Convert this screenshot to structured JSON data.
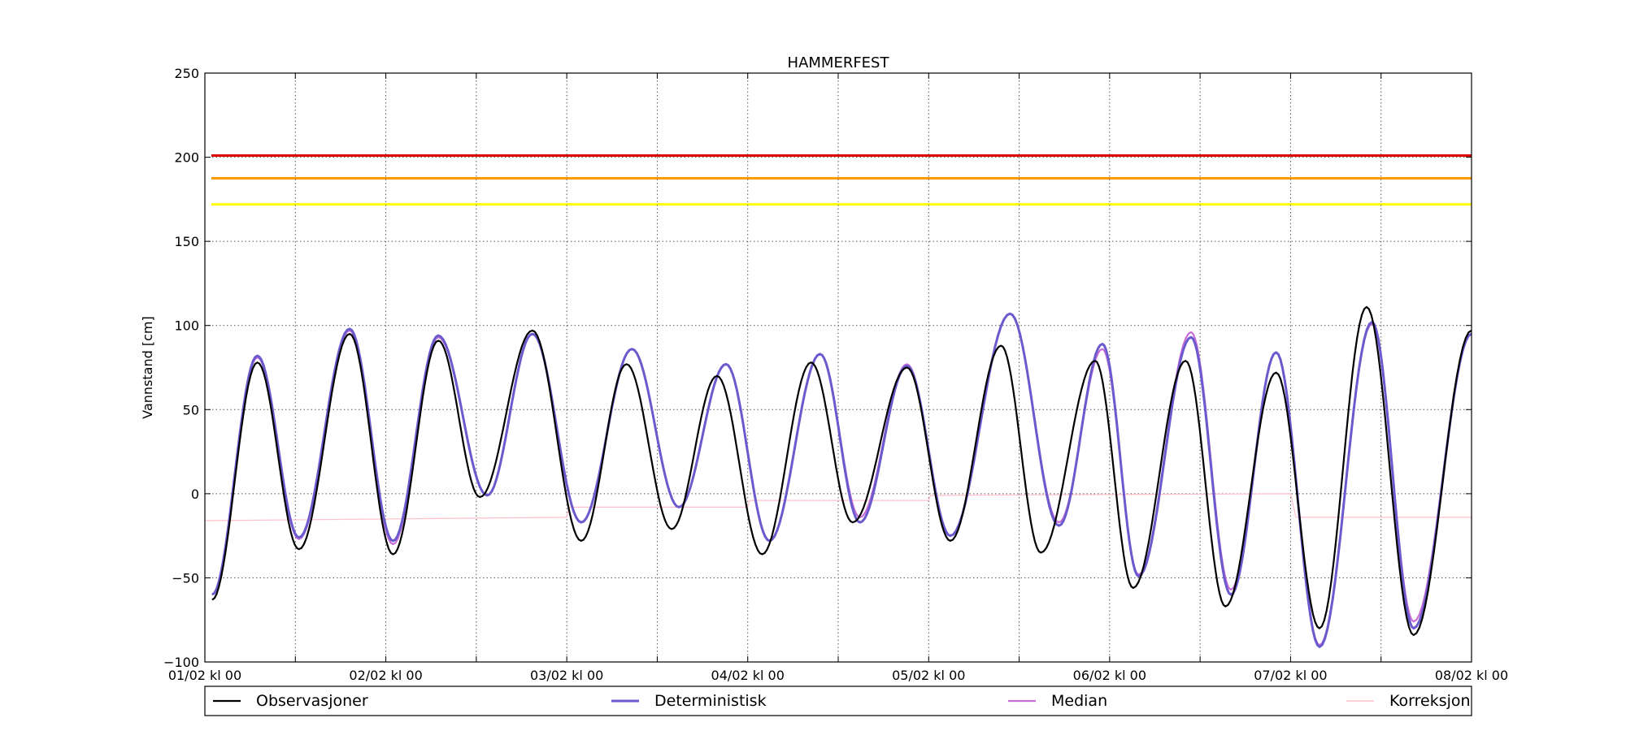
{
  "chart_data": {
    "type": "line",
    "title": "HAMMERFEST",
    "xlabel": "",
    "ylabel": "Vannstand [cm]",
    "x_unit": "days since 01/02 kl 00",
    "xlim": [
      0,
      7
    ],
    "ylim": [
      -100,
      250
    ],
    "y_ticks": [
      -100,
      -50,
      0,
      50,
      100,
      150,
      200,
      250
    ],
    "y_tick_labels": [
      "−100",
      "−50",
      "0",
      "50",
      "100",
      "150",
      "200",
      "250"
    ],
    "x_ticks": [
      0,
      1,
      2,
      3,
      4,
      5,
      6,
      7
    ],
    "x_tick_labels": [
      "01/02 kl 00",
      "02/02 kl 00",
      "03/02 kl 00",
      "04/02 kl 00",
      "05/02 kl 00",
      "06/02 kl 00",
      "07/02 kl 00",
      "08/02 kl 00"
    ],
    "grid": true,
    "legend_position": "bottom",
    "thresholds": [
      {
        "value": 201,
        "color": "#dd0000"
      },
      {
        "value": 187.5,
        "color": "#ff9900"
      },
      {
        "value": 172,
        "color": "#ffff00"
      }
    ],
    "extrema": {
      "observasjoner": [
        [
          0.04,
          -63
        ],
        [
          0.29,
          78
        ],
        [
          0.52,
          -33
        ],
        [
          0.8,
          95
        ],
        [
          1.04,
          -36
        ],
        [
          1.29,
          91
        ],
        [
          1.52,
          -2
        ],
        [
          1.81,
          97
        ],
        [
          2.08,
          -28
        ],
        [
          2.33,
          77
        ],
        [
          2.58,
          -21
        ],
        [
          2.83,
          70
        ],
        [
          3.08,
          -36
        ],
        [
          3.35,
          78
        ],
        [
          3.58,
          -17
        ],
        [
          3.88,
          75
        ],
        [
          4.12,
          -28
        ],
        [
          4.4,
          88
        ],
        [
          4.62,
          -35
        ],
        [
          4.92,
          79
        ],
        [
          5.13,
          -56
        ],
        [
          5.42,
          79
        ],
        [
          5.64,
          -67
        ],
        [
          5.92,
          72
        ],
        [
          6.16,
          -80
        ],
        [
          6.42,
          111
        ],
        [
          6.68,
          -84
        ],
        [
          7.0,
          97
        ]
      ],
      "deterministisk": [
        [
          0.04,
          -60
        ],
        [
          0.29,
          82
        ],
        [
          0.52,
          -26
        ],
        [
          0.8,
          98
        ],
        [
          1.04,
          -28
        ],
        [
          1.29,
          94
        ],
        [
          1.56,
          -1
        ],
        [
          1.81,
          95
        ],
        [
          2.08,
          -17
        ],
        [
          2.36,
          86
        ],
        [
          2.62,
          -8
        ],
        [
          2.88,
          77
        ],
        [
          3.12,
          -28
        ],
        [
          3.4,
          83
        ],
        [
          3.62,
          -17
        ],
        [
          3.88,
          76
        ],
        [
          4.12,
          -25
        ],
        [
          4.45,
          107
        ],
        [
          4.72,
          -19
        ],
        [
          4.96,
          89
        ],
        [
          5.16,
          -49
        ],
        [
          5.45,
          93
        ],
        [
          5.67,
          -60
        ],
        [
          5.92,
          84
        ],
        [
          6.16,
          -91
        ],
        [
          6.45,
          102
        ],
        [
          6.68,
          -80
        ],
        [
          7.0,
          95
        ]
      ],
      "median": [
        [
          0.04,
          -60
        ],
        [
          0.29,
          81
        ],
        [
          0.52,
          -27
        ],
        [
          0.8,
          97
        ],
        [
          1.04,
          -30
        ],
        [
          1.29,
          93
        ],
        [
          1.56,
          -1
        ],
        [
          1.81,
          95
        ],
        [
          2.08,
          -17
        ],
        [
          2.36,
          86
        ],
        [
          2.62,
          -8
        ],
        [
          2.88,
          77
        ],
        [
          3.12,
          -28
        ],
        [
          3.4,
          83
        ],
        [
          3.62,
          -14
        ],
        [
          3.88,
          77
        ],
        [
          4.12,
          -25
        ],
        [
          4.45,
          107
        ],
        [
          4.72,
          -17
        ],
        [
          4.96,
          86
        ],
        [
          5.16,
          -48
        ],
        [
          5.45,
          96
        ],
        [
          5.67,
          -57
        ],
        [
          5.92,
          84
        ],
        [
          6.16,
          -90
        ],
        [
          6.45,
          101
        ],
        [
          6.68,
          -76
        ],
        [
          7.0,
          95
        ]
      ],
      "korreksjon": [
        [
          0.0,
          -16
        ],
        [
          2.0,
          -14
        ],
        [
          2.01,
          -8
        ],
        [
          3.0,
          -8
        ],
        [
          3.01,
          -4
        ],
        [
          4.0,
          -4
        ],
        [
          4.01,
          -1
        ],
        [
          6.0,
          0
        ],
        [
          6.03,
          -14
        ],
        [
          7.0,
          -14
        ]
      ]
    },
    "series": [
      {
        "name": "Observasjoner",
        "key": "observasjoner",
        "color": "#000000",
        "width": 2.2
      },
      {
        "name": "Deterministisk",
        "key": "deterministisk",
        "color": "#6a5acd",
        "width": 3
      },
      {
        "name": "Median",
        "key": "median",
        "color": "#c86dd7",
        "width": 2.2
      },
      {
        "name": "Korreksjon",
        "key": "korreksjon",
        "color": "#ffc0cb",
        "width": 1.2
      }
    ]
  }
}
